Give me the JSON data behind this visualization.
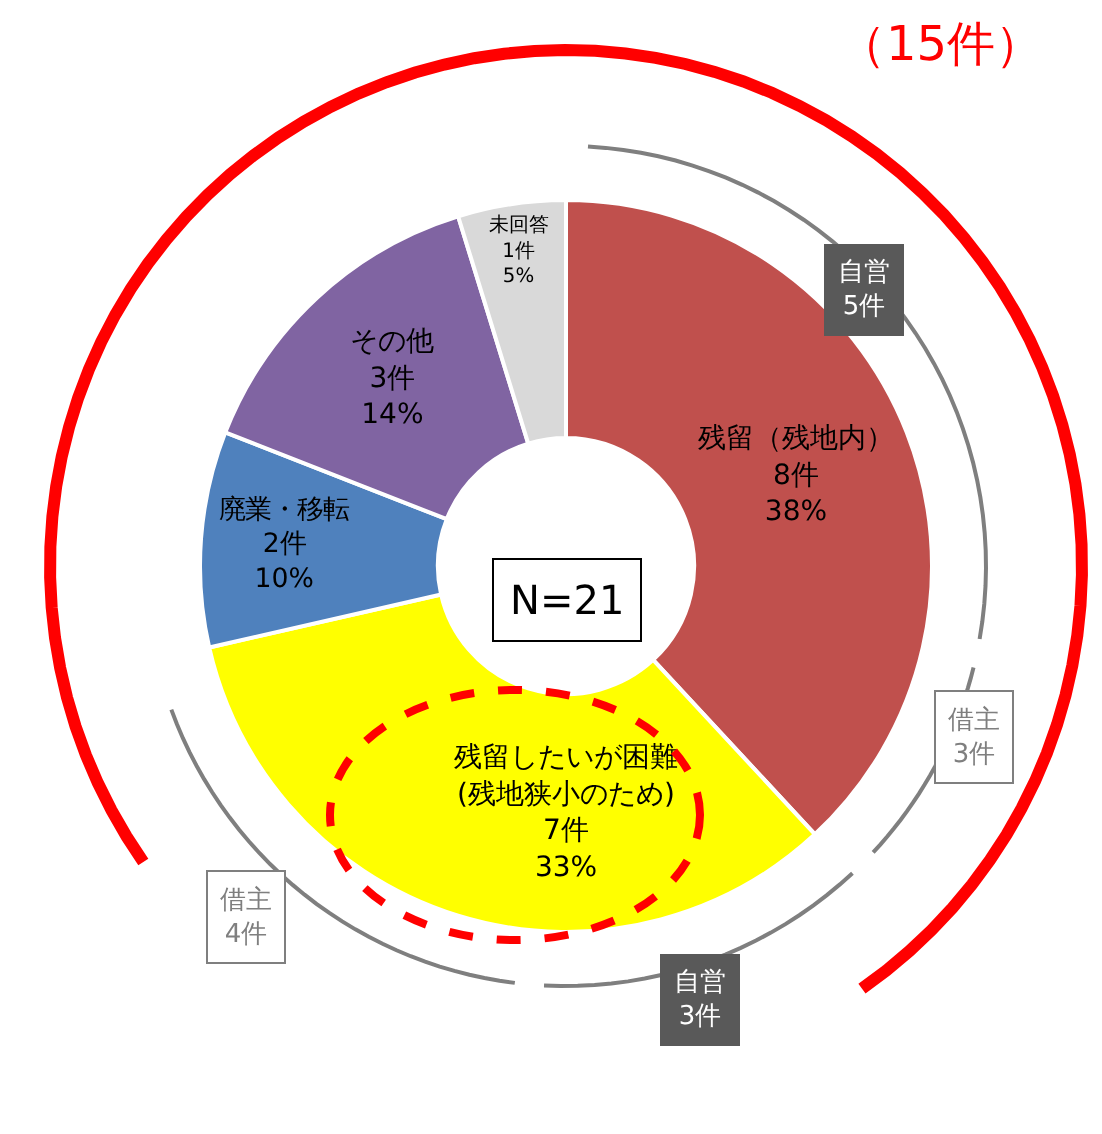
{
  "chart_data": {
    "type": "donut",
    "categories": [
      "残留（残地内）",
      "残留したいが困難\n(残地狭小のため)",
      "廃業・移転",
      "その他",
      "未回答"
    ],
    "values": [
      8,
      7,
      2,
      3,
      1
    ],
    "value_labels": [
      "8件\n38%",
      "7件\n33%",
      "2件\n10%",
      "3件\n14%",
      "1件\n5%"
    ],
    "colors": [
      "#c0504d",
      "#ffff00",
      "#4f81bd",
      "#8064a2",
      "#d9d9d9"
    ],
    "legend": false,
    "annotations": [
      "N=21",
      "（15件）",
      "自営\n5件",
      "借主\n3件",
      "自営\n3件",
      "借主\n4件"
    ]
  }
}
